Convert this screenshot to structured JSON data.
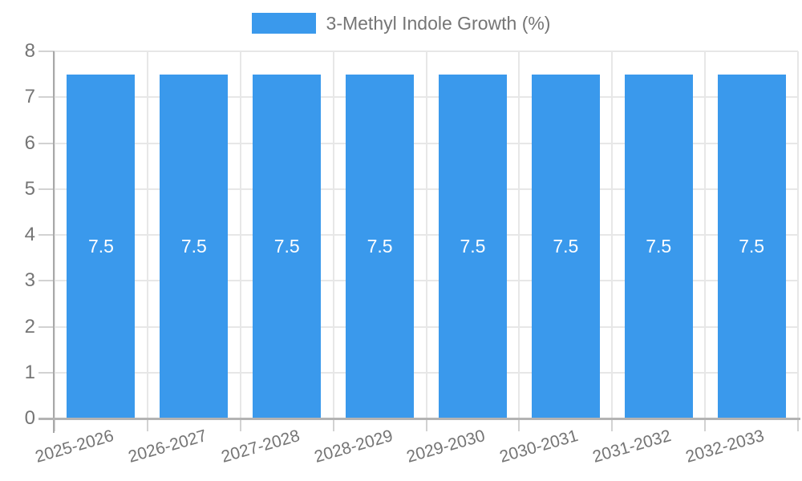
{
  "legend": {
    "label": "3-Methyl Indole Growth (%)"
  },
  "chart_data": {
    "type": "bar",
    "title": "3-Methyl Indole Growth (%)",
    "categories": [
      "2025-2026",
      "2026-2027",
      "2027-2028",
      "2028-2029",
      "2029-2030",
      "2030-2031",
      "2031-2032",
      "2032-2033"
    ],
    "values": [
      7.5,
      7.5,
      7.5,
      7.5,
      7.5,
      7.5,
      7.5,
      7.5
    ],
    "value_labels": [
      "7.5",
      "7.5",
      "7.5",
      "7.5",
      "7.5",
      "7.5",
      "7.5",
      "7.5"
    ],
    "xlabel": "",
    "ylabel": "",
    "ylim": [
      0,
      8
    ],
    "ytick_step": 1,
    "ytick_labels": [
      "0",
      "1",
      "2",
      "3",
      "4",
      "5",
      "6",
      "7",
      "8"
    ],
    "grid": true,
    "legend_position": "top-center",
    "x_label_rotation_deg": -16,
    "colors": {
      "bar": "#3A99EC",
      "value_label": "#ffffff",
      "axis_text": "#757575",
      "grid": "#e7e7e7",
      "tick": "#d2d2d2",
      "axis_line": "#b3b3b3"
    }
  }
}
